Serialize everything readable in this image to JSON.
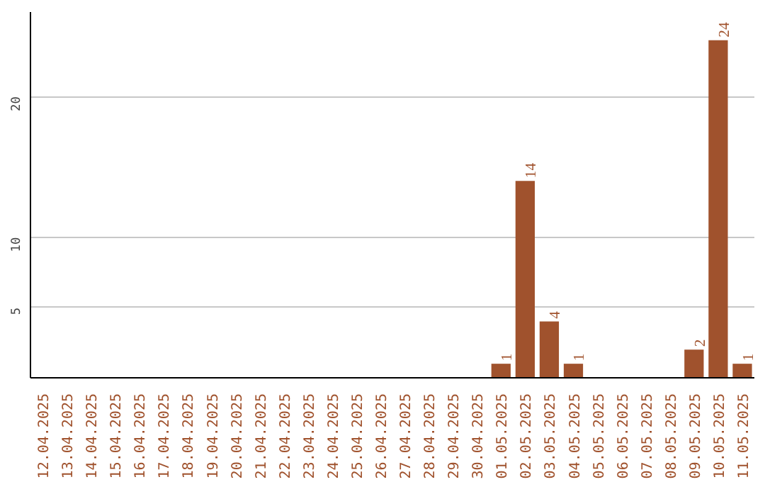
{
  "chart_data": {
    "type": "bar",
    "categories": [
      "12.04.2025",
      "13.04.2025",
      "14.04.2025",
      "15.04.2025",
      "16.04.2025",
      "17.04.2025",
      "18.04.2025",
      "19.04.2025",
      "20.04.2025",
      "21.04.2025",
      "22.04.2025",
      "23.04.2025",
      "24.04.2025",
      "25.04.2025",
      "26.04.2025",
      "27.04.2025",
      "28.04.2025",
      "29.04.2025",
      "30.04.2025",
      "01.05.2025",
      "02.05.2025",
      "03.05.2025",
      "04.05.2025",
      "05.05.2025",
      "06.05.2025",
      "07.05.2025",
      "08.05.2025",
      "09.05.2025",
      "10.05.2025",
      "11.05.2025"
    ],
    "values": [
      0,
      0,
      0,
      0,
      0,
      0,
      0,
      0,
      0,
      0,
      0,
      0,
      0,
      0,
      0,
      0,
      0,
      0,
      0,
      1,
      14,
      4,
      1,
      0,
      0,
      0,
      0,
      2,
      24,
      1
    ],
    "value_labels": [
      null,
      null,
      null,
      null,
      null,
      null,
      null,
      null,
      null,
      null,
      null,
      null,
      null,
      null,
      null,
      null,
      null,
      null,
      null,
      "1",
      "14",
      "4",
      "1",
      null,
      null,
      null,
      null,
      "2",
      "24",
      "1"
    ],
    "color": "#a0522d",
    "ylim": [
      0,
      26
    ],
    "yticks": [
      5,
      10,
      20
    ],
    "grid": "y"
  }
}
